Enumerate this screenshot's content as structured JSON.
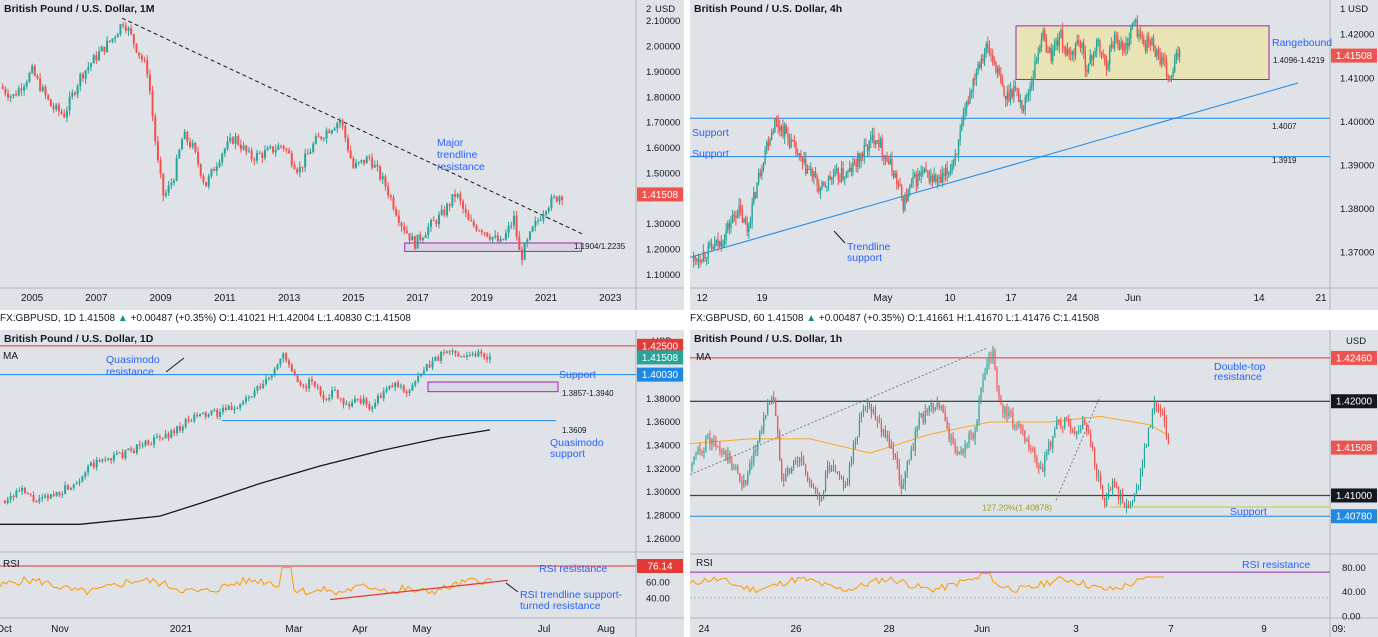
{
  "colors": {
    "panel_bg": "#dfe2e7",
    "up": "#26a69a",
    "down": "#ef5350",
    "annotation_blue": "#2962ff",
    "support_blue": "#1e88e5",
    "resistance_red": "#e53935",
    "zone_purple": "#9c27b0",
    "ma_black": "#131722",
    "ma_orange": "#f9a825",
    "rsi_orange": "#ff9800"
  },
  "legend_1d": {
    "symbol": "FX:GBPUSD, 1D",
    "last": "1.41508",
    "change": "+0.00487 (+0.35%)",
    "o": "O:1.41021",
    "h": "H:1.42004",
    "l": "L:1.40830",
    "c": "C:1.41508"
  },
  "legend_1h": {
    "symbol": "FX:GBPUSD, 60",
    "last": "1.41508",
    "change": "+0.00487 (+0.35%)",
    "o": "O:1.41661",
    "h": "H:1.41670",
    "l": "L:1.41476",
    "c": "C:1.41508"
  },
  "chart_data": [
    {
      "id": "monthly",
      "type": "candlestick",
      "title": "British Pound / U.S. Dollar, 1M",
      "currency": "USD",
      "ylim": [
        1.05,
        2.15
      ],
      "y_ticks": [
        "1.10000",
        "1.20000",
        "1.30000",
        "1.40000",
        "1.50000",
        "1.60000",
        "1.70000",
        "1.80000",
        "1.90000",
        "2.00000",
        "2.10000"
      ],
      "y_top_label": "2",
      "x_ticks": [
        "2005",
        "2007",
        "2009",
        "2011",
        "2013",
        "2015",
        "2017",
        "2019",
        "2021",
        "2023"
      ],
      "last_price": "1.41508",
      "price_path": [
        [
          2004.0,
          1.84
        ],
        [
          2004.4,
          1.8
        ],
        [
          2005.0,
          1.9
        ],
        [
          2005.6,
          1.76
        ],
        [
          2006.0,
          1.73
        ],
        [
          2006.5,
          1.88
        ],
        [
          2007.0,
          1.96
        ],
        [
          2007.5,
          2.03
        ],
        [
          2007.85,
          2.1
        ],
        [
          2008.3,
          1.98
        ],
        [
          2008.6,
          1.9
        ],
        [
          2008.9,
          1.55
        ],
        [
          2009.1,
          1.4
        ],
        [
          2009.4,
          1.48
        ],
        [
          2009.7,
          1.65
        ],
        [
          2010.0,
          1.6
        ],
        [
          2010.4,
          1.45
        ],
        [
          2010.9,
          1.58
        ],
        [
          2011.3,
          1.64
        ],
        [
          2011.8,
          1.56
        ],
        [
          2012.3,
          1.58
        ],
        [
          2012.8,
          1.61
        ],
        [
          2013.3,
          1.51
        ],
        [
          2013.8,
          1.62
        ],
        [
          2014.2,
          1.67
        ],
        [
          2014.6,
          1.71
        ],
        [
          2015.0,
          1.52
        ],
        [
          2015.5,
          1.56
        ],
        [
          2016.0,
          1.45
        ],
        [
          2016.5,
          1.3
        ],
        [
          2016.9,
          1.22
        ],
        [
          2017.3,
          1.28
        ],
        [
          2017.8,
          1.34
        ],
        [
          2018.2,
          1.42
        ],
        [
          2018.6,
          1.3
        ],
        [
          2019.0,
          1.28
        ],
        [
          2019.6,
          1.22
        ],
        [
          2020.0,
          1.32
        ],
        [
          2020.2,
          1.16
        ],
        [
          2020.6,
          1.28
        ],
        [
          2021.0,
          1.37
        ],
        [
          2021.4,
          1.41
        ],
        [
          2021.5,
          1.415
        ]
      ],
      "annotations": [
        {
          "text": "Major",
          "color": "annotation_blue"
        },
        {
          "text": "trendline",
          "color": "annotation_blue"
        },
        {
          "text": "resistance",
          "color": "annotation_blue"
        },
        {
          "text": "1.1904/1.2235",
          "color": "ma_black"
        }
      ],
      "trendline": {
        "from": [
          2007.8,
          2.11
        ],
        "to": [
          2022.2,
          1.255
        ]
      },
      "zone": {
        "x": [
          2016.6,
          2022.1
        ],
        "y": [
          1.1904,
          1.2235
        ]
      }
    },
    {
      "id": "4h",
      "type": "candlestick",
      "title": "British Pound / U.S. Dollar, 4h",
      "currency": "USD",
      "ylim": [
        1.362,
        1.426
      ],
      "y_ticks": [
        "1.37000",
        "1.38000",
        "1.39000",
        "1.40000",
        "1.41000",
        "1.42000"
      ],
      "y_top_label": "1",
      "x_ticks": [
        "12",
        "19",
        "May",
        "10",
        "17",
        "24",
        "Jun",
        "14",
        "21"
      ],
      "last_price": "1.41508",
      "price_path": [
        [
          0,
          1.368
        ],
        [
          3,
          1.372
        ],
        [
          5,
          1.38
        ],
        [
          6,
          1.375
        ],
        [
          7,
          1.385
        ],
        [
          8,
          1.394
        ],
        [
          9,
          1.4
        ],
        [
          10,
          1.398
        ],
        [
          11,
          1.394
        ],
        [
          12,
          1.39
        ],
        [
          13,
          1.388
        ],
        [
          14,
          1.384
        ],
        [
          15,
          1.387
        ],
        [
          17,
          1.388
        ],
        [
          19,
          1.394
        ],
        [
          20,
          1.397
        ],
        [
          21,
          1.392
        ],
        [
          22,
          1.388
        ],
        [
          23,
          1.381
        ],
        [
          24,
          1.386
        ],
        [
          25,
          1.388
        ],
        [
          27,
          1.386
        ],
        [
          28,
          1.389
        ],
        [
          29,
          1.395
        ],
        [
          30,
          1.405
        ],
        [
          31,
          1.413
        ],
        [
          32,
          1.417
        ],
        [
          33,
          1.413
        ],
        [
          34,
          1.405
        ],
        [
          35,
          1.408
        ],
        [
          36,
          1.403
        ],
        [
          37,
          1.41
        ],
        [
          38,
          1.42
        ],
        [
          39,
          1.415
        ],
        [
          40,
          1.42
        ],
        [
          41,
          1.414
        ],
        [
          42,
          1.419
        ],
        [
          43,
          1.412
        ],
        [
          44,
          1.418
        ],
        [
          45,
          1.413
        ],
        [
          46,
          1.42
        ],
        [
          47,
          1.416
        ],
        [
          48,
          1.423
        ],
        [
          49,
          1.418
        ],
        [
          50,
          1.418
        ],
        [
          51,
          1.414
        ],
        [
          52,
          1.409
        ],
        [
          53,
          1.417
        ]
      ],
      "annotations": [
        {
          "text": "Rangebound",
          "color": "annotation_blue"
        },
        {
          "text": "1.4096-1.4219",
          "color": "ma_black"
        },
        {
          "text": "Support",
          "color": "annotation_blue"
        },
        {
          "text": "Support",
          "color": "annotation_blue"
        },
        {
          "text": "1.4007",
          "color": "ma_black"
        },
        {
          "text": "1.3919",
          "color": "ma_black"
        },
        {
          "text": "Trendline",
          "color": "annotation_blue"
        },
        {
          "text": "support",
          "color": "annotation_blue"
        }
      ],
      "zone": {
        "y": [
          1.4096,
          1.4219
        ]
      },
      "levels": [
        1.4007,
        1.3919
      ]
    },
    {
      "id": "daily",
      "type": "candlestick",
      "title": "British Pound / U.S. Dollar, 1D",
      "currency": "USD",
      "ylim": [
        1.25,
        1.43
      ],
      "y_ticks": [
        "1.26000",
        "1.28000",
        "1.30000",
        "1.32000",
        "1.34000",
        "1.36000",
        "1.38000"
      ],
      "x_ticks": [
        "Oct",
        "Nov",
        "2021",
        "Mar",
        "Apr",
        "May",
        "Jul",
        "Aug"
      ],
      "price_tags": [
        "1.42500",
        "1.41508",
        "1.40030"
      ],
      "last_price": "1.41508",
      "price_path": [
        [
          0,
          1.292
        ],
        [
          3,
          1.301
        ],
        [
          6,
          1.291
        ],
        [
          9,
          1.298
        ],
        [
          12,
          1.307
        ],
        [
          15,
          1.322
        ],
        [
          18,
          1.329
        ],
        [
          21,
          1.333
        ],
        [
          24,
          1.342
        ],
        [
          27,
          1.346
        ],
        [
          30,
          1.356
        ],
        [
          33,
          1.365
        ],
        [
          36,
          1.367
        ],
        [
          39,
          1.372
        ],
        [
          42,
          1.382
        ],
        [
          45,
          1.398
        ],
        [
          47,
          1.418
        ],
        [
          48,
          1.41
        ],
        [
          50,
          1.388
        ],
        [
          52,
          1.395
        ],
        [
          54,
          1.381
        ],
        [
          56,
          1.386
        ],
        [
          58,
          1.374
        ],
        [
          60,
          1.38
        ],
        [
          62,
          1.372
        ],
        [
          64,
          1.384
        ],
        [
          66,
          1.392
        ],
        [
          68,
          1.386
        ],
        [
          70,
          1.397
        ],
        [
          72,
          1.41
        ],
        [
          74,
          1.418
        ],
        [
          76,
          1.42
        ],
        [
          78,
          1.417
        ],
        [
          80,
          1.419
        ],
        [
          82,
          1.415
        ]
      ],
      "annotations": [
        {
          "text": "Quasimodo",
          "color": "annotation_blue"
        },
        {
          "text": "resistance",
          "color": "annotation_blue"
        },
        {
          "text": "Support",
          "color": "annotation_blue"
        },
        {
          "text": "1.3857-1.3940",
          "color": "ma_black"
        },
        {
          "text": "1.3609",
          "color": "ma_black"
        },
        {
          "text": "Quasimodo",
          "color": "annotation_blue"
        },
        {
          "text": "support",
          "color": "annotation_blue"
        },
        {
          "text": "MA",
          "color": "ma_black"
        }
      ],
      "levels": {
        "resistance": 1.425,
        "support": 1.4003,
        "zone": [
          1.3857,
          1.394
        ],
        "quasimodo_support": 1.3609
      },
      "rsi": {
        "label": "RSI",
        "value_tag": "76.14",
        "y_ticks": [
          "60.00",
          "40.00"
        ],
        "resistance_label": "RSI resistance",
        "trendline_label_1": "RSI trendline support-",
        "trendline_label_2": "turned resistance"
      }
    },
    {
      "id": "hourly",
      "type": "candlestick",
      "title": "British Pound / U.S. Dollar, 1h",
      "currency": "USD",
      "ylim": [
        1.404,
        1.4265
      ],
      "x_ticks": [
        "24",
        "26",
        "28",
        "Jun",
        "3",
        "7",
        "9"
      ],
      "x_clipped_tick": "09:",
      "price_tags": [
        "1.42460",
        "1.42000",
        "1.41508",
        "1.41000",
        "1.40780"
      ],
      "last_price": "1.41508",
      "price_path": [
        [
          0,
          1.413
        ],
        [
          4,
          1.416
        ],
        [
          8,
          1.414
        ],
        [
          12,
          1.411
        ],
        [
          16,
          1.418
        ],
        [
          18,
          1.421
        ],
        [
          20,
          1.412
        ],
        [
          24,
          1.414
        ],
        [
          28,
          1.409
        ],
        [
          30,
          1.413
        ],
        [
          34,
          1.411
        ],
        [
          36,
          1.416
        ],
        [
          38,
          1.42
        ],
        [
          40,
          1.419
        ],
        [
          44,
          1.415
        ],
        [
          46,
          1.411
        ],
        [
          50,
          1.418
        ],
        [
          54,
          1.42
        ],
        [
          58,
          1.414
        ],
        [
          62,
          1.417
        ],
        [
          64,
          1.423
        ],
        [
          66,
          1.425
        ],
        [
          67,
          1.42
        ],
        [
          70,
          1.418
        ],
        [
          74,
          1.415
        ],
        [
          76,
          1.412
        ],
        [
          80,
          1.418
        ],
        [
          84,
          1.417
        ],
        [
          86,
          1.418
        ],
        [
          90,
          1.409
        ],
        [
          92,
          1.411
        ],
        [
          95,
          1.409
        ],
        [
          97,
          1.41
        ],
        [
          99,
          1.415
        ],
        [
          101,
          1.42
        ],
        [
          103,
          1.418
        ],
        [
          104,
          1.415
        ]
      ],
      "annotations": [
        {
          "text": "Double-top",
          "color": "annotation_blue"
        },
        {
          "text": "resistance",
          "color": "annotation_blue"
        },
        {
          "text": "127.20%(1.40878)",
          "color": "ma_orange"
        },
        {
          "text": "Support",
          "color": "annotation_blue"
        },
        {
          "text": "MA",
          "color": "ma_black"
        }
      ],
      "levels": {
        "resistance": 1.4246,
        "round": 1.42,
        "round_low": 1.41,
        "support": 1.4078,
        "fib": 1.40878
      },
      "rsi": {
        "label": "RSI",
        "y_ticks": [
          "80.00",
          "40.00",
          "0.00"
        ],
        "resistance_label": "RSI resistance"
      }
    }
  ]
}
